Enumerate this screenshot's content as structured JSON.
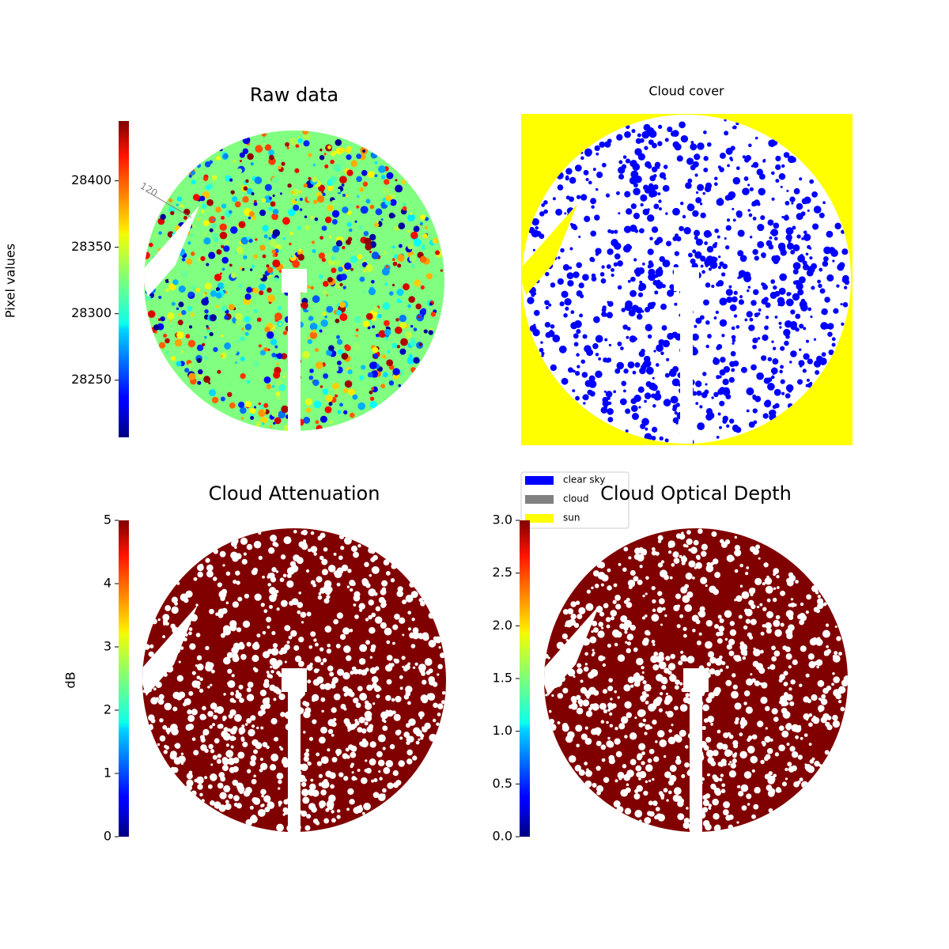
{
  "chart_data": [
    {
      "type": "image",
      "title": "Raw data",
      "colorbar_label": "Pixel values",
      "cmap": "jet",
      "clim": [
        28207,
        28445
      ],
      "cticks": [
        28250,
        28300,
        28350,
        28400
      ],
      "annotations": [
        "120"
      ]
    },
    {
      "type": "image",
      "title": "Cloud cover",
      "series": [
        {
          "name": "clear sky",
          "color": "#0000ff"
        },
        {
          "name": "cloud",
          "color": "#808080"
        },
        {
          "name": "sun",
          "color": "#ffff00"
        }
      ]
    },
    {
      "type": "image",
      "title": "Cloud Attenuation",
      "colorbar_label": "dB",
      "cmap": "jet",
      "clim": [
        0,
        5
      ],
      "cticks": [
        0,
        1,
        2,
        3,
        4,
        5
      ]
    },
    {
      "type": "image",
      "title": "Cloud Optical Depth",
      "cmap": "jet",
      "clim": [
        0,
        3
      ],
      "cticks": [
        {
          "value": 0,
          "label": "0.0"
        },
        0.5,
        {
          "value": 1,
          "label": "1.0"
        },
        1.5,
        {
          "value": 2,
          "label": "2.0"
        },
        2.5,
        {
          "value": 3,
          "label": "3.0"
        }
      ]
    }
  ]
}
